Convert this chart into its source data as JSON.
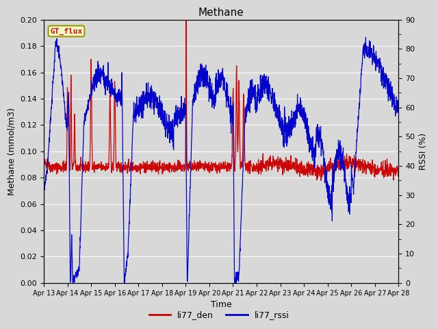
{
  "title": "Methane",
  "xlabel": "Time",
  "ylabel_left": "Methane (mmol/m3)",
  "ylabel_right": "RSSI (%)",
  "gt_flux_label": "GT_flux",
  "legend_entries": [
    "li77_den",
    "li77_rssi"
  ],
  "ylim_left": [
    0.0,
    0.2
  ],
  "ylim_right": [
    0,
    90
  ],
  "yticks_left": [
    0.0,
    0.02,
    0.04,
    0.06,
    0.08,
    0.1,
    0.12,
    0.14,
    0.16,
    0.18,
    0.2
  ],
  "yticks_right": [
    0,
    10,
    20,
    30,
    40,
    50,
    60,
    70,
    80,
    90
  ],
  "color_red": "#cc0000",
  "color_blue": "#0000cc",
  "bg_color": "#d8d8d8",
  "plot_bg_color": "#d8d8d8",
  "gt_flux_bg": "#ffffcc",
  "gt_flux_border": "#999900",
  "tick_label_color": "#333333",
  "grid_color": "#ffffff",
  "x_start": 13.0,
  "x_end": 28.0,
  "xtick_positions": [
    13,
    14,
    15,
    16,
    17,
    18,
    19,
    20,
    21,
    22,
    23,
    24,
    25,
    26,
    27,
    28
  ],
  "xtick_labels": [
    "Apr 13",
    "Apr 14",
    "Apr 15",
    "Apr 16",
    "Apr 17",
    "Apr 18",
    "Apr 19",
    "Apr 20",
    "Apr 21",
    "Apr 22",
    "Apr 23",
    "Apr 24",
    "Apr 25",
    "Apr 26",
    "Apr 27",
    "Apr 28"
  ]
}
